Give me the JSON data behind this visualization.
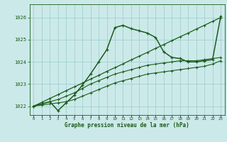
{
  "title": "Graphe pression niveau de la mer (hPa)",
  "hours": [
    0,
    1,
    2,
    3,
    4,
    5,
    6,
    7,
    8,
    9,
    10,
    11,
    12,
    13,
    14,
    15,
    16,
    17,
    18,
    19,
    20,
    21,
    22,
    23
  ],
  "ylim": [
    1021.6,
    1026.6
  ],
  "yticks": [
    1022,
    1023,
    1024,
    1025,
    1026
  ],
  "background_color": "#cce9e9",
  "grid_color": "#99cccc",
  "line_color": "#1a5c1a",
  "series_straight": [
    1022.0,
    1022.17,
    1022.35,
    1022.52,
    1022.7,
    1022.87,
    1023.04,
    1023.22,
    1023.39,
    1023.57,
    1023.74,
    1023.91,
    1024.09,
    1024.26,
    1024.43,
    1024.61,
    1024.78,
    1024.96,
    1025.13,
    1025.3,
    1025.48,
    1025.65,
    1025.83,
    1026.0
  ],
  "series_flat1": [
    1022.0,
    1022.05,
    1022.1,
    1022.15,
    1022.2,
    1022.3,
    1022.45,
    1022.6,
    1022.75,
    1022.9,
    1023.05,
    1023.15,
    1023.25,
    1023.35,
    1023.45,
    1023.5,
    1023.55,
    1023.6,
    1023.65,
    1023.7,
    1023.75,
    1023.8,
    1023.9,
    1024.05
  ],
  "series_flat2": [
    1022.0,
    1022.1,
    1022.2,
    1022.3,
    1022.45,
    1022.6,
    1022.8,
    1023.0,
    1023.15,
    1023.3,
    1023.45,
    1023.55,
    1023.65,
    1023.75,
    1023.85,
    1023.9,
    1023.95,
    1024.0,
    1024.05,
    1024.05,
    1024.05,
    1024.1,
    1024.15,
    1024.2
  ],
  "series_peak": [
    1022.0,
    1022.1,
    1022.2,
    1021.8,
    1022.15,
    1022.5,
    1022.95,
    1023.45,
    1024.0,
    1024.55,
    1025.55,
    1025.65,
    1025.5,
    1025.4,
    1025.3,
    1025.1,
    1024.45,
    1024.2,
    1024.15,
    1024.0,
    1024.0,
    1024.05,
    1024.1,
    1026.05
  ]
}
